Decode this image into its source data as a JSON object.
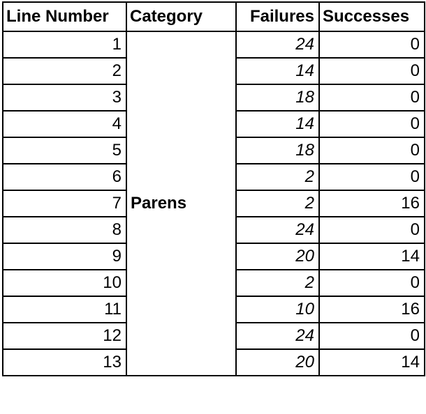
{
  "table": {
    "headers": [
      "Line Number",
      "Category",
      "Failures",
      "Successes"
    ],
    "category": "Parens",
    "rows": [
      {
        "line": "1",
        "failures": "24",
        "successes": "0"
      },
      {
        "line": "2",
        "failures": "14",
        "successes": "0"
      },
      {
        "line": "3",
        "failures": "18",
        "successes": "0"
      },
      {
        "line": "4",
        "failures": "14",
        "successes": "0"
      },
      {
        "line": "5",
        "failures": "18",
        "successes": "0"
      },
      {
        "line": "6",
        "failures": "2",
        "successes": "0"
      },
      {
        "line": "7",
        "failures": "2",
        "successes": "16"
      },
      {
        "line": "8",
        "failures": "24",
        "successes": "0"
      },
      {
        "line": "9",
        "failures": "20",
        "successes": "14"
      },
      {
        "line": "10",
        "failures": "2",
        "successes": "0"
      },
      {
        "line": "11",
        "failures": "10",
        "successes": "16"
      },
      {
        "line": "12",
        "failures": "24",
        "successes": "0"
      },
      {
        "line": "13",
        "failures": "20",
        "successes": "14"
      }
    ]
  }
}
